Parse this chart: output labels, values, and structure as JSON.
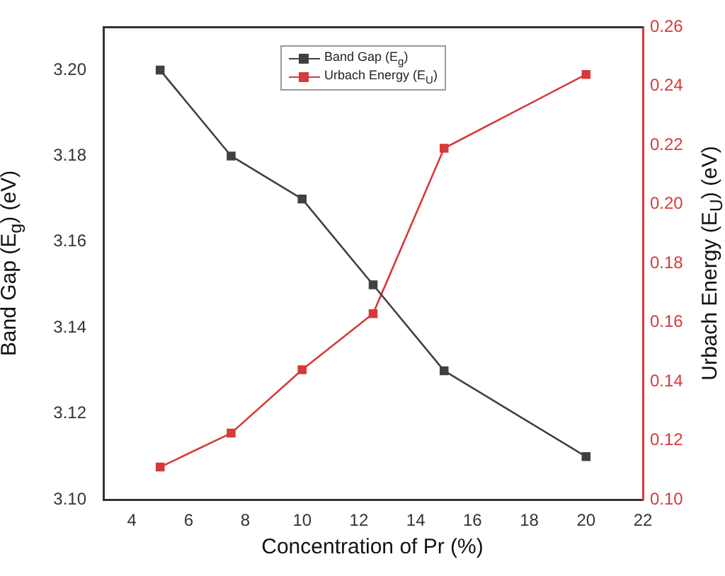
{
  "chart_data": {
    "type": "line",
    "xlabel": "Concentration of Pr (%)",
    "ylabel": "Band Gap (E$_{g}$) (eV)",
    "y2label": "Urbach Energy (E$_{U}$) (eV)",
    "x": [
      5,
      7.5,
      10,
      12.5,
      15,
      20
    ],
    "series": [
      {
        "name": "Band Gap (E$_{g}$)",
        "color": "#404040",
        "values": [
          3.2,
          3.18,
          3.17,
          3.15,
          3.13,
          3.11
        ]
      },
      {
        "name": "Urbach Energy (E$_{U}$)",
        "color": "#d63a3a",
        "axis": "y2",
        "values": [
          0.111,
          0.1225,
          0.144,
          0.163,
          0.219,
          0.244
        ]
      }
    ],
    "xlim": [
      3,
      22
    ],
    "xticks": [
      4,
      6,
      8,
      10,
      12,
      14,
      16,
      18,
      20,
      22
    ],
    "ylim": [
      3.1,
      3.21
    ],
    "yticks": [
      {
        "value": 3.1,
        "label": "3.10"
      },
      {
        "value": 3.12,
        "label": "3.12"
      },
      {
        "value": 3.14,
        "label": "3.14"
      },
      {
        "value": 3.16,
        "label": "3.16"
      },
      {
        "value": 3.18,
        "label": "3.18"
      },
      {
        "value": 3.2,
        "label": "3.20"
      }
    ],
    "y2lim": [
      0.1,
      0.26
    ],
    "y2ticks": [
      {
        "value": 0.1,
        "label": "0.10"
      },
      {
        "value": 0.12,
        "label": "0.12"
      },
      {
        "value": 0.14,
        "label": "0.14"
      },
      {
        "value": 0.16,
        "label": "0.16"
      },
      {
        "value": 0.18,
        "label": "0.18"
      },
      {
        "value": 0.2,
        "label": "0.20"
      },
      {
        "value": 0.22,
        "label": "0.22"
      },
      {
        "value": 0.24,
        "label": "0.24"
      },
      {
        "value": 0.26,
        "label": "0.26"
      }
    ],
    "grid": false,
    "legend": "top",
    "marker": "square",
    "line_style": "solid"
  }
}
